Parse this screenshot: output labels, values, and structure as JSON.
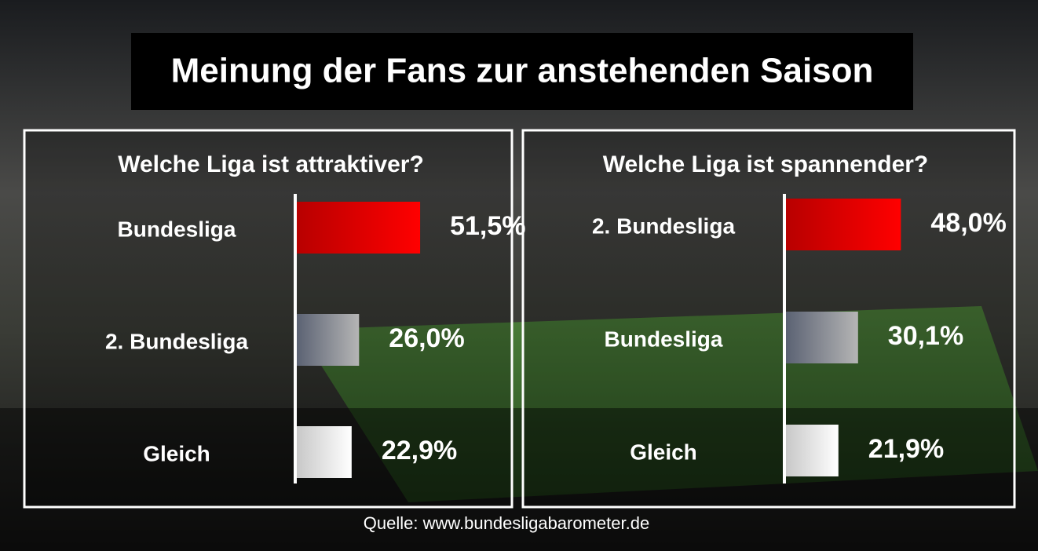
{
  "title": "Meinung der Fans zur anstehenden Saison",
  "source": "Quelle: www.bundesligabarometer.de",
  "chart_data": [
    {
      "type": "bar",
      "orientation": "horizontal",
      "title": "Welche Liga ist attraktiver?",
      "categories": [
        "Bundesliga",
        "2. Bundesliga",
        "Gleich"
      ],
      "values": [
        51.5,
        26.0,
        22.9
      ],
      "value_labels": [
        "51,5%",
        "26,0%",
        "22,9%"
      ],
      "colors": [
        [
          "#b80000",
          "#ff0000"
        ],
        [
          "#5b6273",
          "#b5b5b5"
        ],
        [
          "#c8c8c8",
          "#ffffff"
        ]
      ]
    },
    {
      "type": "bar",
      "orientation": "horizontal",
      "title": "Welche Liga ist spannender?",
      "categories": [
        "2. Bundesliga",
        "Bundesliga",
        "Gleich"
      ],
      "values": [
        48.0,
        30.1,
        21.9
      ],
      "value_labels": [
        "48,0%",
        "30,1%",
        "21,9%"
      ],
      "colors": [
        [
          "#b80000",
          "#ff0000"
        ],
        [
          "#5b6273",
          "#b5b5b5"
        ],
        [
          "#c8c8c8",
          "#ffffff"
        ]
      ]
    }
  ]
}
